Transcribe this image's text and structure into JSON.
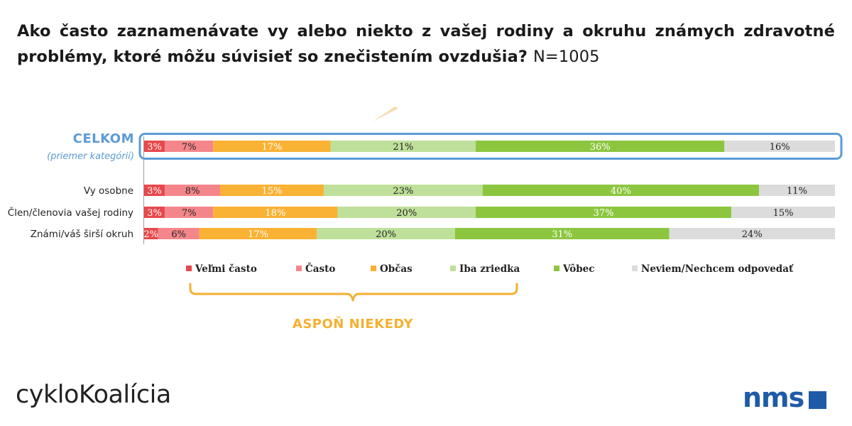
{
  "title": {
    "question": "Ako často zaznamenávate vy alebo niekto z vašej rodiny a okruhu známych zdravotné problémy, ktoré môžu súvisieť so znečistením ovzdušia?",
    "sample": "N=1005"
  },
  "chart_data": {
    "type": "bar",
    "orientation": "horizontal",
    "stacked": true,
    "normalized_100": true,
    "categories": [
      "CELKOM",
      "Vy osobne",
      "Člen/členovia vašej rodiny",
      "Známi/váš širší okruh"
    ],
    "total_note": "(priemer kategórií)",
    "series": [
      {
        "name": "Veľmi často",
        "color": "#e8484c",
        "label_color": "#ffffff",
        "values": [
          3,
          3,
          3,
          2
        ]
      },
      {
        "name": "Často",
        "color": "#f4868b",
        "label_color": "#222222",
        "values": [
          7,
          8,
          7,
          6
        ]
      },
      {
        "name": "Občas",
        "color": "#f9b233",
        "label_color": "#ffffff",
        "values": [
          17,
          15,
          18,
          17
        ]
      },
      {
        "name": "Iba zriedka",
        "color": "#bfe09a",
        "label_color": "#222222",
        "values": [
          21,
          23,
          20,
          20
        ]
      },
      {
        "name": "Vôbec",
        "color": "#8cc63f",
        "label_color": "#ffffff",
        "values": [
          36,
          40,
          37,
          31
        ]
      },
      {
        "name": "Neviem/Nechcem odpovedať",
        "color": "#dcdcdc",
        "label_color": "#222222",
        "values": [
          16,
          11,
          15,
          24
        ]
      }
    ],
    "value_suffix": "%",
    "legend_position": "bottom",
    "annotation": {
      "text": "ASPOŇ NIEKEDY",
      "spans_series": [
        "Veľmi často",
        "Často",
        "Občas",
        "Iba zriedka"
      ],
      "color": "#f5b031"
    },
    "highlight_color": "#5b9bd5"
  },
  "logos": {
    "left": "cykloKoalícia",
    "right": "nms"
  }
}
